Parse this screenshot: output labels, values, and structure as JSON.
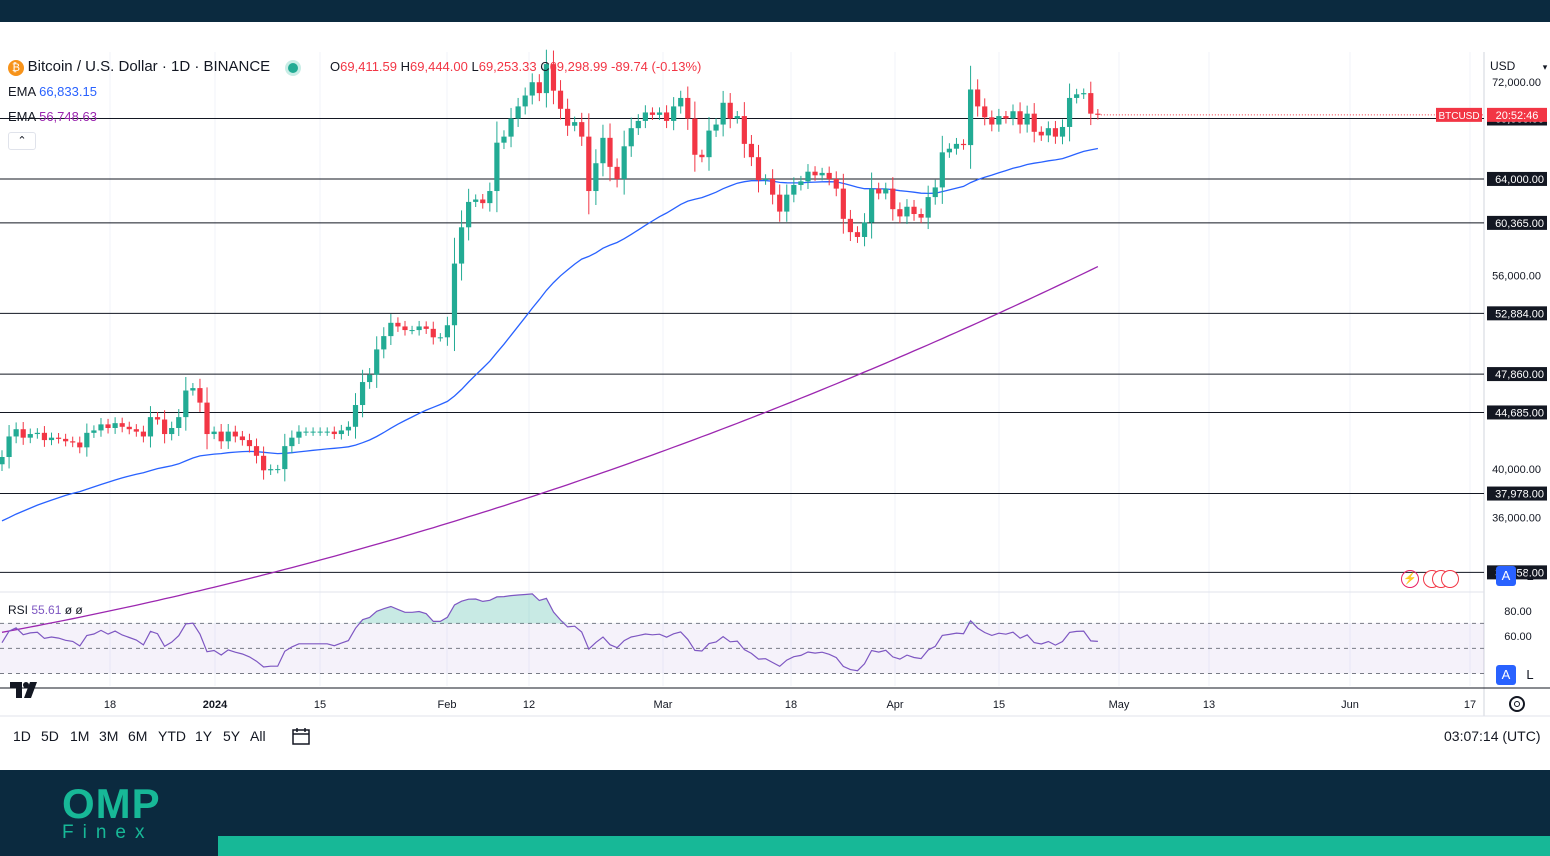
{
  "header": {
    "title": "Bitcoin / U.S. Dollar · 1D · BINANCE",
    "ohlc": {
      "o_label": "O",
      "o": "69,411.59",
      "h_label": "H",
      "h": "69,444.00",
      "l_label": "L",
      "l": "69,253.33",
      "c_label": "C",
      "c": "69,298.99",
      "change": "-89.74 (-0.13%)"
    },
    "ema1": {
      "label": "EMA",
      "value": "66,833.15"
    },
    "ema2": {
      "label": "EMA",
      "value": "56,748.63"
    },
    "collapse_icon": "chevron-up-icon"
  },
  "price_axis": {
    "currency": "USD",
    "ticks": [
      "72,000.00",
      "56,000.00",
      "40,000.00",
      "36,000.00"
    ],
    "levels": [
      "69,000.00",
      "64,000.00",
      "60,365.00",
      "52,884.00",
      "47,860.00",
      "44,685.00",
      "37,978.00",
      "31,458.00"
    ],
    "symbol_tag": "BTCUSD",
    "countdown": "20:52:46",
    "auto_label": "A",
    "log_label": "L"
  },
  "rsi": {
    "label": "RSI",
    "value": "55.61",
    "extra": "ø ø",
    "ticks": [
      "80.00",
      "60.00"
    ]
  },
  "time_axis": [
    "18",
    "2024",
    "15",
    "Feb",
    "12",
    "Mar",
    "18",
    "Apr",
    "15",
    "May",
    "13",
    "Jun",
    "17"
  ],
  "range_buttons": [
    "1D",
    "5D",
    "1M",
    "3M",
    "6M",
    "YTD",
    "1Y",
    "5Y",
    "All"
  ],
  "clock": "03:07:14 (UTC)",
  "colors": {
    "up": "#22ab94",
    "down": "#f23645",
    "ema_fast": "#2962ff",
    "ema_slow": "#9c27b0",
    "rsi": "#7e57c2",
    "brand": "#17b897",
    "dark": "#0b2a3f"
  },
  "footer_logo": {
    "main": "OMP",
    "sub": "Finex"
  },
  "chart_data": {
    "type": "candlestick",
    "symbol": "BTCUSD",
    "interval": "1D",
    "ylim": [
      30000,
      74500
    ],
    "horizontal_levels": [
      69000,
      64000,
      60365,
      52884,
      47860,
      44685,
      37978,
      31458
    ],
    "candles_close": [
      41000,
      42700,
      43300,
      42600,
      42900,
      43000,
      42400,
      42600,
      42500,
      42300,
      42200,
      41800,
      43000,
      43200,
      43700,
      43400,
      43800,
      43500,
      43300,
      43100,
      42700,
      44300,
      44100,
      42900,
      43400,
      44300,
      46500,
      46700,
      45500,
      42900,
      43100,
      42300,
      43100,
      42700,
      42400,
      41900,
      41100,
      39900,
      40000,
      40000,
      41900,
      42600,
      43100,
      43100,
      43100,
      43100,
      43100,
      42900,
      43200,
      43500,
      45300,
      47200,
      47800,
      49900,
      51000,
      52100,
      51800,
      51500,
      51500,
      51800,
      51600,
      50900,
      50900,
      51900,
      57000,
      60000,
      62100,
      62300,
      62000,
      63000,
      67000,
      67500,
      69000,
      70000,
      70900,
      72000,
      71100,
      73500,
      71300,
      69800,
      68400,
      68700,
      67500,
      63000,
      65300,
      67400,
      65000,
      64000,
      66700,
      68200,
      68800,
      69500,
      69300,
      69500,
      68800,
      70000,
      70700,
      69000,
      66000,
      65800,
      68000,
      68500,
      70300,
      69000,
      69200,
      66900,
      65800,
      63900,
      64000,
      62700,
      61300,
      62700,
      63500,
      63800,
      64600,
      64300,
      64500,
      64000,
      63200,
      60700,
      59600,
      59200,
      60400,
      63200,
      62800,
      63200,
      61500,
      60900,
      61700,
      61100,
      60800,
      62500,
      63300,
      66200,
      66500,
      66900,
      66800,
      71400,
      70000,
      69100,
      68500,
      69200,
      69000,
      69600,
      68500,
      69400,
      67900,
      67600,
      68200,
      67500,
      68300,
      70700,
      71000,
      71100,
      69400,
      69300
    ],
    "ema_fast_last": 66833.15,
    "ema_slow_last": 56748.63,
    "rsi_last": 55.61,
    "rsi_ylim": [
      20,
      95
    ],
    "rsi_levels": [
      70,
      50,
      30
    ]
  }
}
